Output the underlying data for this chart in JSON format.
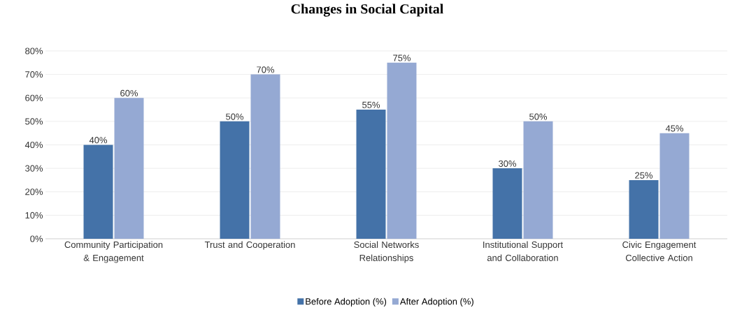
{
  "chart_data": {
    "type": "bar",
    "title": "Changes in Social Capital",
    "categories": [
      "Community Participation & Engagement",
      "Trust and Cooperation",
      "Social Networks Relationships",
      "Institutional Support and Collaboration",
      "Civic Engagement Collective Action"
    ],
    "series": [
      {
        "name": "Before Adoption (%)",
        "color": "#4472a8",
        "values": [
          40,
          50,
          55,
          30,
          25
        ],
        "value_labels": [
          "40%",
          "50%",
          "55%",
          "30%",
          "25%"
        ]
      },
      {
        "name": "After Adoption  (%)",
        "color": "#95a9d3",
        "values": [
          60,
          70,
          75,
          50,
          45
        ],
        "value_labels": [
          "60%",
          "70%",
          "75%",
          "50%",
          "45%"
        ]
      }
    ],
    "ylim": [
      0,
      80
    ],
    "yticks": [
      {
        "value": 0,
        "label": "0%"
      },
      {
        "value": 10,
        "label": "10%"
      },
      {
        "value": 20,
        "label": "20%"
      },
      {
        "value": 30,
        "label": "30%"
      },
      {
        "value": 40,
        "label": "40%"
      },
      {
        "value": 50,
        "label": "50%"
      },
      {
        "value": 60,
        "label": "60%"
      },
      {
        "value": 70,
        "label": "70%"
      },
      {
        "value": 80,
        "label": "80%"
      }
    ],
    "grid": "y",
    "legend": "bottom"
  }
}
